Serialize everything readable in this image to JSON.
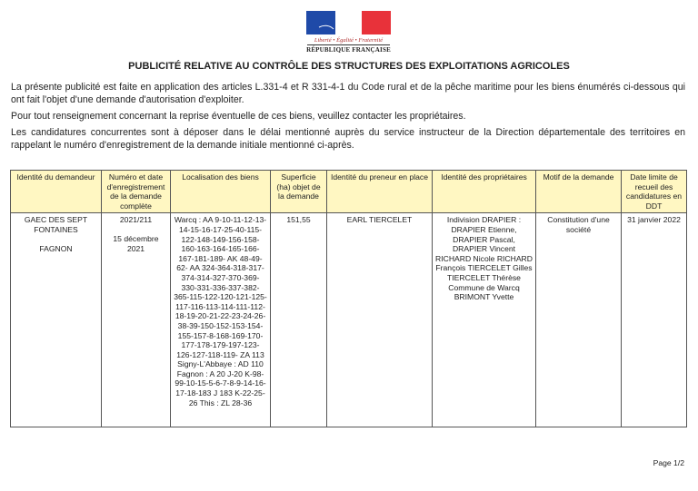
{
  "logo": {
    "motto": "Liberté • Égalité • Fraternité",
    "name": "RÉPUBLIQUE FRANÇAISE",
    "colors": {
      "blue": "#1f4aa8",
      "red": "#e8323a"
    }
  },
  "title": "PUBLICITÉ RELATIVE AU CONTRÔLE DES STRUCTURES DES EXPLOITATIONS AGRICOLES",
  "paragraphs": [
    "La présente publicité est faite en application des articles L.331-4 et R 331-4-1 du Code rural et de la pêche maritime pour les biens énumérés ci-dessous qui ont fait l'objet d'une demande d'autorisation d'exploiter.",
    "Pour tout renseignement concernant la reprise éventuelle de ces biens, veuillez contacter les propriétaires.",
    "Les candidatures concurrentes sont à déposer dans le délai mentionné auprès du service instructeur de la Direction départementale des territoires en rappelant le numéro d'enregistrement de la demande initiale mentionné ci-après."
  ],
  "table": {
    "headers": [
      "Identité du demandeur",
      "Numéro et date d'enregistrement de la demande complète",
      "Localisation des biens",
      "Superficie (ha) objet de la demande",
      "Identité du preneur en place",
      "Identité des propriétaires",
      "Motif de la demande",
      "Date limite de recueil des candidatures en DDT"
    ],
    "row": {
      "demandeur": "GAEC DES SEPT FONTAINES",
      "demandeur_commune": "FAGNON",
      "numero": "2021/211",
      "date": "15 décembre 2021",
      "localisation": "Warcq : AA 9-10-11-12-13-14-15-16-17-25-40-115-122-148-149-156-158-160-163-164-165-166-167-181-189- AK 48-49-62- AA 324-364-318-317-374-314-327-370-369-330-331-336-337-382-365-115-122-120-121-125-117-116-113-114-111-112-18-19-20-21-22-23-24-26-38-39-150-152-153-154-155-157-8-168-169-170-177-178-179-197-123-126-127-118-119- ZA 113 Signy-L'Abbaye : AD 110 Fagnon : A 20 J-20 K-98-99-10-15-5-6-7-8-9-14-16-17-18-183 J 183 K-22-25-26 This : ZL 28-36",
      "superficie": "151,55",
      "preneur": "EARL TIERCELET",
      "proprietaires": "Indivision DRAPIER : DRAPIER Etienne, DRAPIER Pascal, DRAPIER Vincent RICHARD Nicole RICHARD François TIERCELET Gilles TIERCELET Thérèse Commune de Warcq BRIMONT Yvette",
      "motif": "Constitution d'une société",
      "date_limite": "31 janvier 2022"
    }
  },
  "footer": {
    "page": "Page 1/2"
  }
}
